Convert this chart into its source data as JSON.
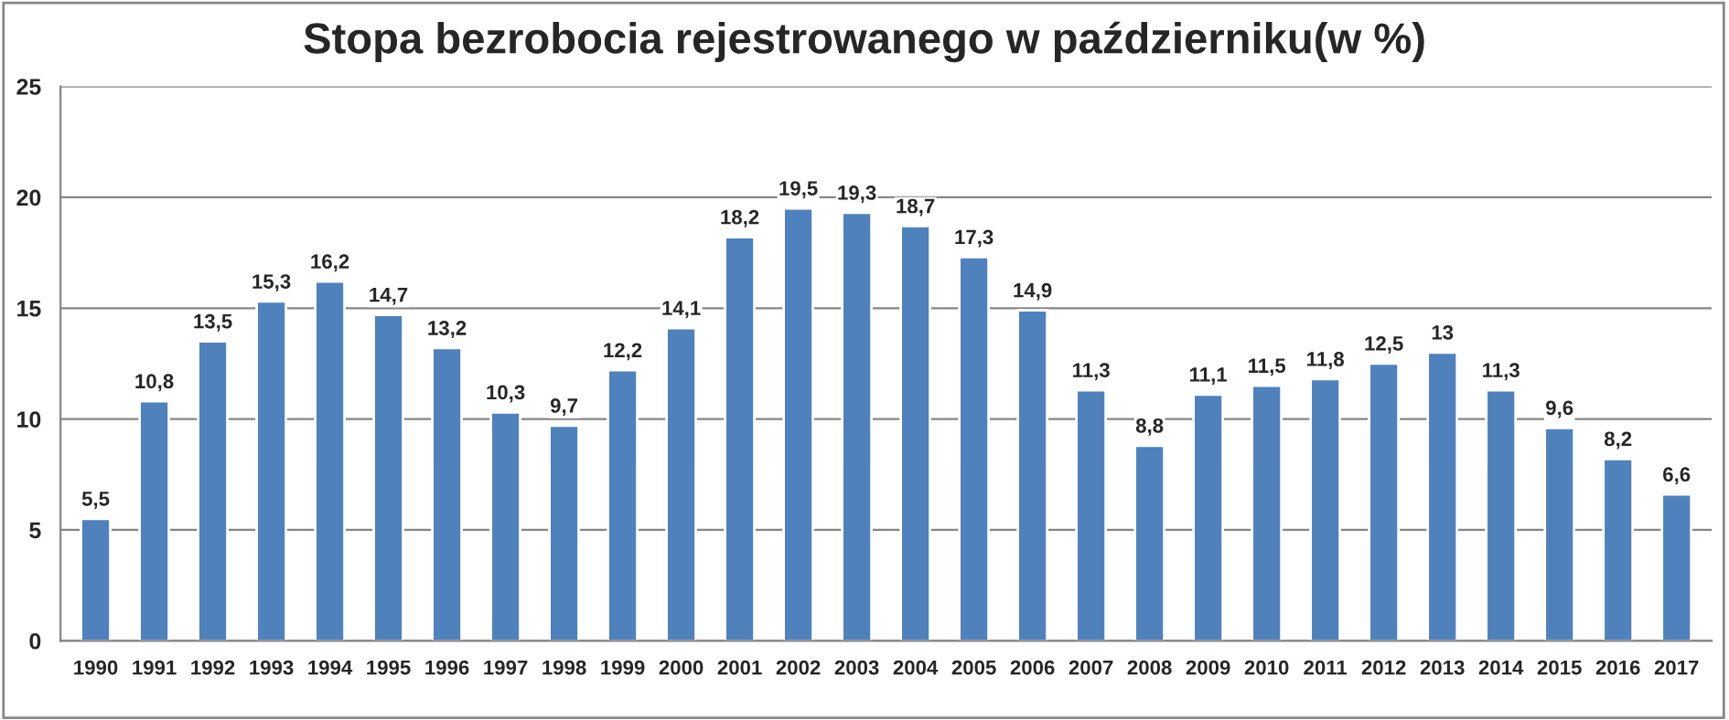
{
  "chart_data": {
    "type": "bar",
    "title": "Stopa bezrobocia rejestrowanego w październiku(w %)",
    "categories": [
      "1990",
      "1991",
      "1992",
      "1993",
      "1994",
      "1995",
      "1996",
      "1997",
      "1998",
      "1999",
      "2000",
      "2001",
      "2002",
      "2003",
      "2004",
      "2005",
      "2006",
      "2007",
      "2008",
      "2009",
      "2010",
      "2011",
      "2012",
      "2013",
      "2014",
      "2015",
      "2016",
      "2017"
    ],
    "values": [
      5.5,
      10.8,
      13.5,
      15.3,
      16.2,
      14.7,
      13.2,
      10.3,
      9.7,
      12.2,
      14.1,
      18.2,
      19.5,
      19.3,
      18.7,
      17.3,
      14.9,
      11.3,
      8.8,
      11.1,
      11.5,
      11.8,
      12.5,
      13,
      11.3,
      9.6,
      8.2,
      6.6
    ],
    "value_labels": [
      "5,5",
      "10,8",
      "13,5",
      "15,3",
      "16,2",
      "14,7",
      "13,2",
      "10,3",
      "9,7",
      "12,2",
      "14,1",
      "18,2",
      "19,5",
      "19,3",
      "18,7",
      "17,3",
      "14,9",
      "11,3",
      "8,8",
      "11,1",
      "11,5",
      "11,8",
      "12,5",
      "13",
      "11,3",
      "9,6",
      "8,2",
      "6,6"
    ],
    "color": "#4f81bd",
    "ylim": [
      0,
      25
    ],
    "yticks": [
      0,
      5,
      10,
      15,
      20,
      25
    ],
    "grid": "y",
    "legend": false
  }
}
